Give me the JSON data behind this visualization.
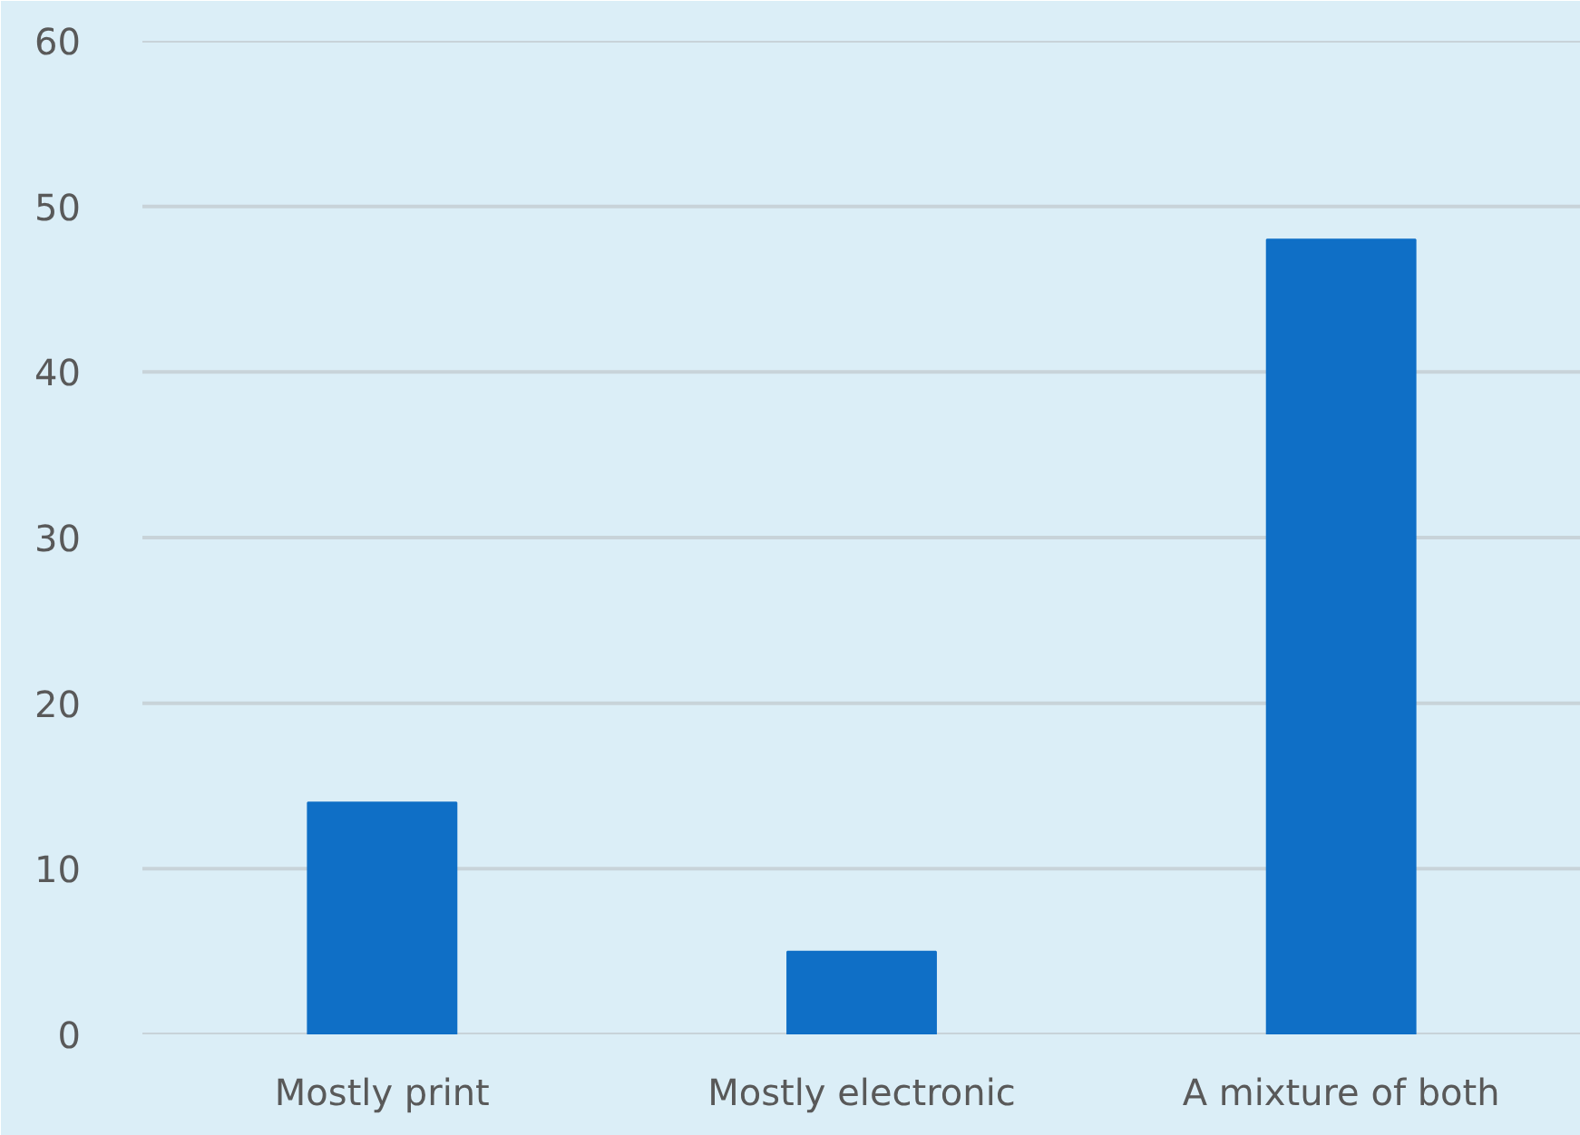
{
  "chart_data": {
    "type": "bar",
    "categories": [
      "Mostly print",
      "Mostly electronic",
      "A mixture of both"
    ],
    "values": [
      14,
      5,
      48
    ],
    "color": "#0f6fc6",
    "ylim": [
      0,
      60
    ],
    "yticks": [
      0,
      10,
      20,
      30,
      40,
      50,
      60
    ],
    "grid": "y"
  }
}
